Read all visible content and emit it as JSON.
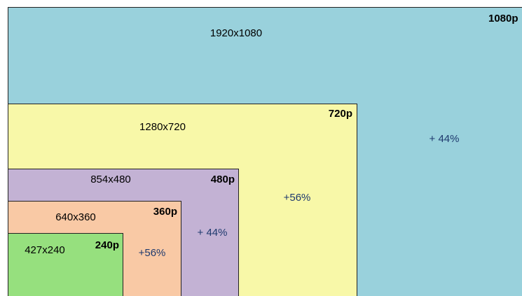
{
  "nodes": [
    {
      "dimensions": "1920x1080",
      "resolution": "1080p"
    },
    {
      "dimensions": "1280x720",
      "resolution": "720p"
    },
    {
      "dimensions": "854x480",
      "resolution": "480p"
    },
    {
      "dimensions": "640x360",
      "resolution": "360p"
    },
    {
      "dimensions": "427x240",
      "resolution": "240p"
    }
  ],
  "annotations": [
    "+ 44%",
    "+56%",
    "+ 44%",
    "+56%"
  ]
}
